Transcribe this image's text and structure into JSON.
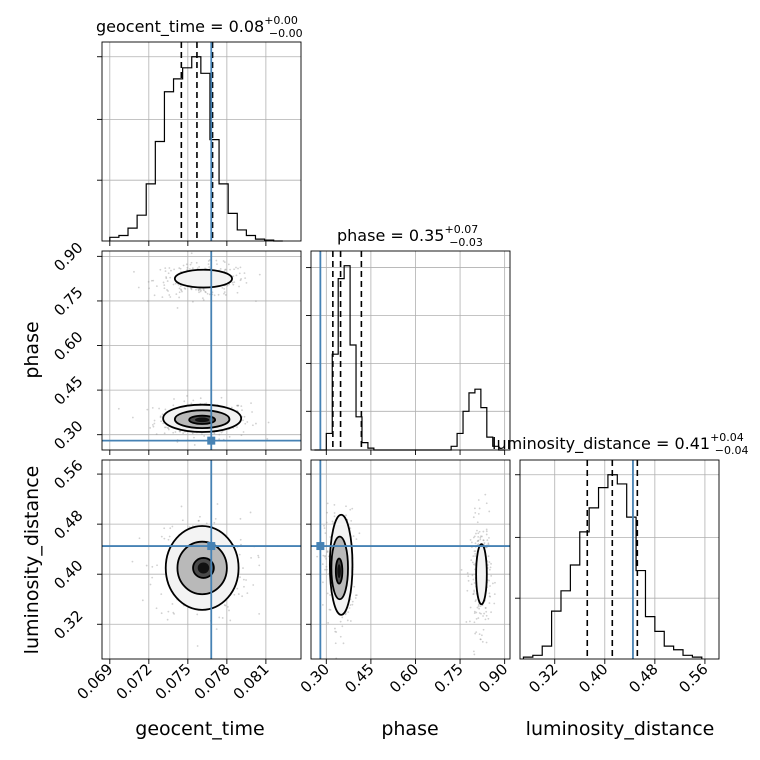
{
  "chart_data": {
    "type": "corner",
    "parameters": [
      "geocent_time",
      "phase",
      "luminosity_distance"
    ],
    "injection": {
      "geocent_time": 0.0768,
      "phase": 0.28,
      "luminosity_distance": 0.445
    },
    "titles": [
      {
        "param": "geocent_time",
        "name": "geocent_time = 0.08",
        "sup": "+0.00",
        "sub": "−0.00"
      },
      {
        "param": "phase",
        "name": "phase = 0.35",
        "sup": "+0.07",
        "sub": "−0.03"
      },
      {
        "param": "luminosity_distance",
        "name": "luminosity_distance = 0.41",
        "sup": "+0.04",
        "sub": "−0.04"
      }
    ],
    "axes": {
      "geocent_time": {
        "label": "geocent_time",
        "range": [
          0.0684,
          0.0837
        ],
        "ticks": [
          0.069,
          0.072,
          0.075,
          0.078,
          0.081
        ],
        "tick_labels": [
          "0.069",
          "0.072",
          "0.075",
          "0.078",
          "0.081"
        ]
      },
      "phase": {
        "label": "phase",
        "range": [
          0.2485,
          0.918
        ],
        "ticks": [
          0.3,
          0.45,
          0.6,
          0.75,
          0.9
        ],
        "tick_labels": [
          "0.30",
          "0.45",
          "0.60",
          "0.75",
          "0.90"
        ]
      },
      "luminosity_distance": {
        "label": "luminosity_distance",
        "range": [
          0.2645,
          0.5825
        ],
        "ticks": [
          0.32,
          0.4,
          0.48,
          0.56
        ],
        "tick_labels": [
          "0.32",
          "0.40",
          "0.48",
          "0.56"
        ]
      }
    },
    "histograms": {
      "geocent_time": {
        "edges": [
          0.069,
          0.0697,
          0.0704,
          0.0711,
          0.0718,
          0.0725,
          0.0732,
          0.0739,
          0.0746,
          0.0753,
          0.076,
          0.0767,
          0.0774,
          0.0781,
          0.0788,
          0.0795,
          0.0802,
          0.0809,
          0.0816,
          0.0823
        ],
        "counts": [
          0.02,
          0.03,
          0.07,
          0.14,
          0.31,
          0.54,
          0.81,
          0.88,
          0.94,
          1.0,
          0.91,
          0.55,
          0.31,
          0.15,
          0.06,
          0.03,
          0.01,
          0.005,
          0.0
        ],
        "ymax": 1.08,
        "yticks": [
          0.33,
          0.66,
          1.0
        ],
        "quantiles": [
          0.0745,
          0.0757,
          0.0769
        ]
      },
      "phase": {
        "edges": [
          0.26,
          0.28,
          0.3,
          0.32,
          0.34,
          0.36,
          0.38,
          0.4,
          0.42,
          0.44,
          0.46,
          0.48,
          0.5,
          0.52,
          0.54,
          0.56,
          0.58,
          0.6,
          0.62,
          0.64,
          0.66,
          0.68,
          0.7,
          0.72,
          0.74,
          0.76,
          0.78,
          0.8,
          0.82,
          0.84,
          0.86,
          0.88,
          0.9
        ],
        "counts": [
          0.0,
          0.0,
          0.09,
          0.52,
          0.93,
          1.0,
          0.57,
          0.18,
          0.04,
          0.01,
          0.0,
          0.0,
          0.0,
          0.0,
          0.0,
          0.0,
          0.0,
          0.0,
          0.0,
          0.0,
          0.0,
          0.0,
          0.0,
          0.02,
          0.09,
          0.21,
          0.31,
          0.33,
          0.23,
          0.07,
          0.02,
          0.0
        ],
        "ymax": 1.08,
        "yticks": [
          0.21,
          0.47,
          0.73,
          0.99
        ],
        "quantiles": [
          0.322,
          0.348,
          0.418
        ]
      },
      "luminosity_distance": {
        "edges": [
          0.27,
          0.285,
          0.3,
          0.315,
          0.33,
          0.345,
          0.36,
          0.375,
          0.39,
          0.405,
          0.42,
          0.435,
          0.45,
          0.465,
          0.48,
          0.495,
          0.51,
          0.525,
          0.54,
          0.555
        ],
        "counts": [
          0.01,
          0.02,
          0.07,
          0.26,
          0.37,
          0.51,
          0.69,
          0.82,
          0.93,
          1.0,
          0.95,
          0.77,
          0.48,
          0.23,
          0.15,
          0.07,
          0.05,
          0.02,
          0.01
        ],
        "ymax": 1.08,
        "yticks": [
          0.33,
          0.66,
          1.0
        ],
        "quantiles": [
          0.372,
          0.412,
          0.452
        ]
      }
    },
    "joint": {
      "phase_vs_geocent_time": {
        "blobs": [
          {
            "cx": 0.0761,
            "cy": 0.35,
            "sx": 0.0016,
            "sy": 0.028
          },
          {
            "cx": 0.0761,
            "cy": 0.82,
            "sx": 0.0016,
            "sy": 0.024
          }
        ],
        "contours": [
          {
            "level": 1,
            "cx": 0.0761,
            "cy": 0.35,
            "rx": 0.001,
            "ry": 0.014
          },
          {
            "level": 2,
            "cx": 0.0761,
            "cy": 0.352,
            "rx": 0.0021,
            "ry": 0.03
          },
          {
            "level": 3,
            "cx": 0.0761,
            "cy": 0.355,
            "rx": 0.003,
            "ry": 0.046
          },
          {
            "level": 3,
            "cx": 0.0762,
            "cy": 0.825,
            "rx": 0.0022,
            "ry": 0.03
          }
        ]
      },
      "luminosity_distance_vs_geocent_time": {
        "blobs": [
          {
            "cx": 0.0761,
            "cy": 0.41,
            "sx": 0.0016,
            "sy": 0.038
          }
        ],
        "contours": [
          {
            "level": 1,
            "cx": 0.0762,
            "cy": 0.41,
            "rx": 0.0008,
            "ry": 0.016
          },
          {
            "level": 2,
            "cx": 0.0761,
            "cy": 0.41,
            "rx": 0.0019,
            "ry": 0.042
          },
          {
            "level": 3,
            "cx": 0.0761,
            "cy": 0.41,
            "rx": 0.0028,
            "ry": 0.067
          }
        ]
      },
      "luminosity_distance_vs_phase": {
        "blobs": [
          {
            "cx": 0.345,
            "cy": 0.41,
            "sx": 0.022,
            "sy": 0.04
          },
          {
            "cx": 0.82,
            "cy": 0.4,
            "sx": 0.015,
            "sy": 0.038
          }
        ],
        "contours": [
          {
            "level": 1,
            "cx": 0.343,
            "cy": 0.405,
            "rx": 0.011,
            "ry": 0.02
          },
          {
            "level": 2,
            "cx": 0.345,
            "cy": 0.41,
            "rx": 0.028,
            "ry": 0.05
          },
          {
            "level": 3,
            "cx": 0.35,
            "cy": 0.415,
            "rx": 0.038,
            "ry": 0.08
          },
          {
            "level": 3,
            "cx": 0.822,
            "cy": 0.4,
            "rx": 0.018,
            "ry": 0.048
          }
        ]
      }
    },
    "colors": {
      "injection": "#4682b4",
      "hist": "#000000",
      "grid": "#b0b0b0",
      "scatter": "#9a9a9a"
    },
    "grid": true
  }
}
